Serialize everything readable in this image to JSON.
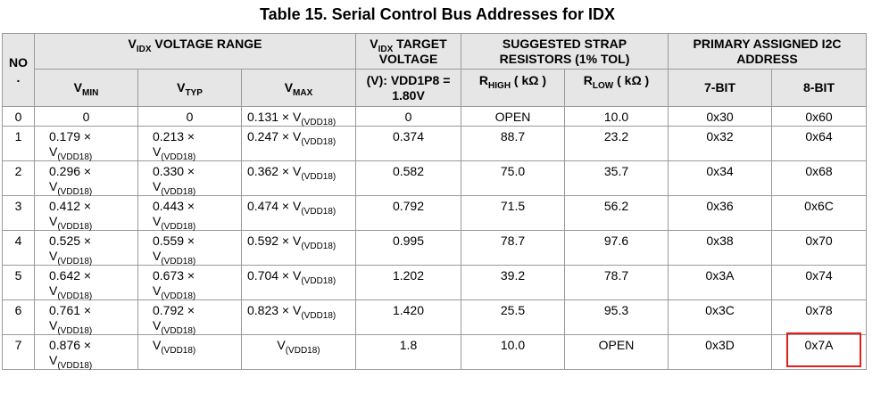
{
  "title": "Table 15.  Serial Control Bus Addresses for IDX",
  "headers": {
    "no_top": "NO",
    "no_bottom": ".",
    "vidx_range": {
      "pre": "V",
      "sub": "IDX",
      "post": " VOLTAGE RANGE"
    },
    "vtarget": {
      "pre": "V",
      "sub": "IDX",
      "post": " TARGET",
      "line2": "VOLTAGE"
    },
    "strap": {
      "line1": "SUGGESTED STRAP",
      "line2": "RESISTORS (1% TOL)"
    },
    "primary": {
      "line1": "PRIMARY ASSIGNED I2C",
      "line2": "ADDRESS"
    },
    "vmin": {
      "pre": "V",
      "sub": "MIN"
    },
    "vtyp": {
      "pre": "V",
      "sub": "TYP"
    },
    "vmax": {
      "pre": "V",
      "sub": "MAX"
    },
    "vdd": {
      "line1": "(V): VDD1P8 =",
      "line2": "1.80V"
    },
    "rhigh": {
      "pre": "R",
      "sub": "HIGH",
      "post": " ( kΩ )"
    },
    "rlow": {
      "pre": "R",
      "sub": "LOW",
      "post": " ( kΩ )"
    },
    "bit7": "7-BIT",
    "bit8": "8-BIT"
  },
  "rows": [
    {
      "no": "0",
      "vmin": {
        "coef": "0",
        "v": false
      },
      "vtyp": {
        "coef": "0",
        "v": false
      },
      "vmax": {
        "coef": "0.131 × ",
        "v": true
      },
      "target": "0",
      "rhigh": "OPEN",
      "rlow": "10.0",
      "bit7": "0x30",
      "bit8": "0x60"
    },
    {
      "no": "1",
      "vmin": {
        "coef": "0.179 ×",
        "v": true
      },
      "vtyp": {
        "coef": "0.213 ×",
        "v": true
      },
      "vmax": {
        "coef": "0.247 × ",
        "v": true
      },
      "target": "0.374",
      "rhigh": "88.7",
      "rlow": "23.2",
      "bit7": "0x32",
      "bit8": "0x64"
    },
    {
      "no": "2",
      "vmin": {
        "coef": "0.296 ×",
        "v": true
      },
      "vtyp": {
        "coef": "0.330 ×",
        "v": true
      },
      "vmax": {
        "coef": "0.362 × ",
        "v": true
      },
      "target": "0.582",
      "rhigh": "75.0",
      "rlow": "35.7",
      "bit7": "0x34",
      "bit8": "0x68"
    },
    {
      "no": "3",
      "vmin": {
        "coef": "0.412 ×",
        "v": true
      },
      "vtyp": {
        "coef": "0.443 ×",
        "v": true
      },
      "vmax": {
        "coef": "0.474 × ",
        "v": true
      },
      "target": "0.792",
      "rhigh": "71.5",
      "rlow": "56.2",
      "bit7": "0x36",
      "bit8": "0x6C"
    },
    {
      "no": "4",
      "vmin": {
        "coef": "0.525 ×",
        "v": true
      },
      "vtyp": {
        "coef": "0.559 ×",
        "v": true
      },
      "vmax": {
        "coef": "0.592 × ",
        "v": true
      },
      "target": "0.995",
      "rhigh": "78.7",
      "rlow": "97.6",
      "bit7": "0x38",
      "bit8": "0x70"
    },
    {
      "no": "5",
      "vmin": {
        "coef": "0.642 ×",
        "v": true
      },
      "vtyp": {
        "coef": "0.673 ×",
        "v": true
      },
      "vmax": {
        "coef": "0.704 × ",
        "v": true
      },
      "target": "1.202",
      "rhigh": "39.2",
      "rlow": "78.7",
      "bit7": "0x3A",
      "bit8": "0x74"
    },
    {
      "no": "6",
      "vmin": {
        "coef": "0.761 ×",
        "v": true
      },
      "vtyp": {
        "coef": "0.792 ×",
        "v": true
      },
      "vmax": {
        "coef": "0.823 × ",
        "v": true
      },
      "target": "1.420",
      "rhigh": "25.5",
      "rlow": "95.3",
      "bit7": "0x3C",
      "bit8": "0x78"
    },
    {
      "no": "7",
      "vmin": {
        "coef": "0.876 ×",
        "v": true
      },
      "vtyp": {
        "coef": "",
        "v": true
      },
      "vmax": {
        "coef": "",
        "v": true
      },
      "target": "1.8",
      "rhigh": "10.0",
      "rlow": "OPEN",
      "bit7": "0x3D",
      "bit8": "0x7A"
    }
  ],
  "supply": {
    "pre": "V",
    "sub": "(VDD18)"
  },
  "highlight_color": "#e02020"
}
